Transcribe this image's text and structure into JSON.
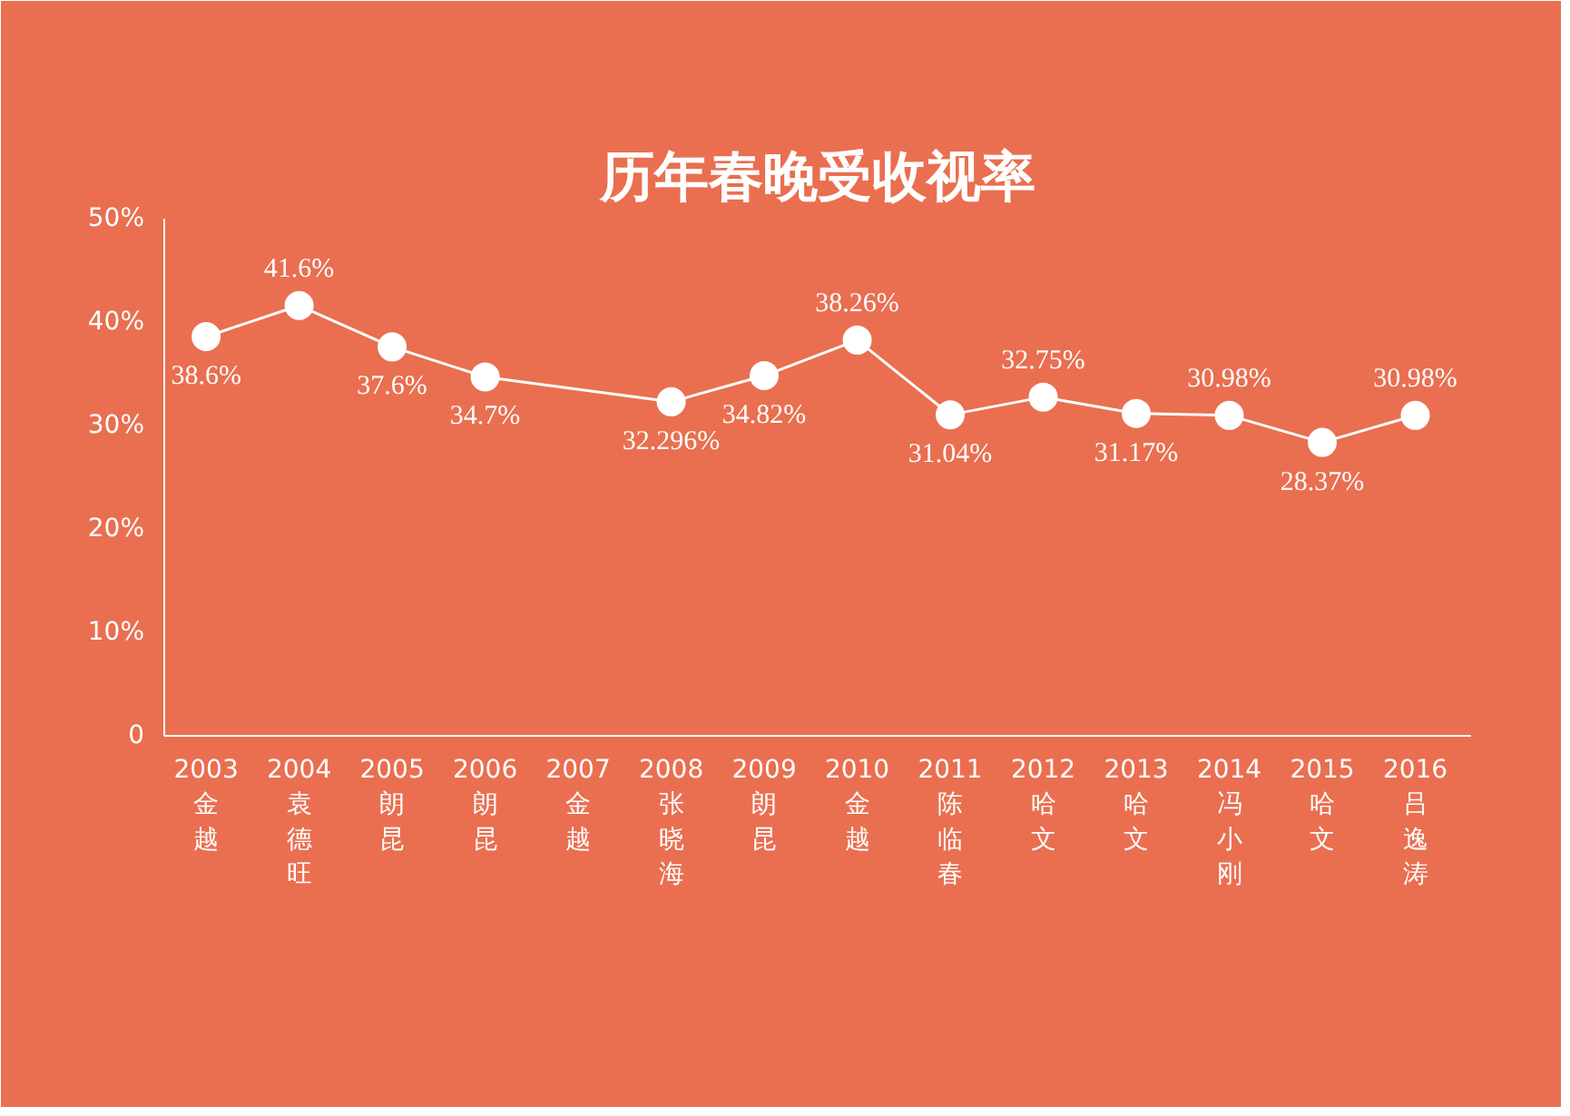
{
  "chart_data": {
    "type": "line",
    "title": "历年春晚受收视率",
    "categories": [
      "2003\n金越",
      "2004\n袁德旺",
      "2005\n朗昆",
      "2006\n朗昆",
      "2007\n金越",
      "2008\n张晓海",
      "2009\n朗昆",
      "2010\n金越",
      "2011\n陈临春",
      "2012\n哈文",
      "2013\n哈文",
      "2014\n冯小刚",
      "2015\n哈文",
      "2016\n吕逸涛"
    ],
    "series": [
      {
        "color": "#ffffff",
        "values": [
          38.6,
          41.6,
          37.6,
          34.7,
          null,
          32.296,
          34.82,
          38.26,
          31.04,
          32.75,
          31.17,
          30.98,
          28.37,
          30.98
        ]
      }
    ],
    "value_labels": [
      "38.6%",
      "41.6%",
      "37.6%",
      "34.7%",
      null,
      "32.296%",
      "34.82%",
      "38.26%",
      "31.04%",
      "32.75%",
      "31.17%",
      "30.98%",
      "28.37%",
      "30.98%"
    ],
    "ylim": [
      0,
      50
    ],
    "yticks": [
      0,
      {
        "value": 10,
        "label": "10%"
      },
      {
        "value": 20,
        "label": "20%"
      },
      {
        "value": 30,
        "label": "30%"
      },
      {
        "value": 40,
        "label": "40%"
      },
      {
        "value": 50,
        "label": "50%"
      }
    ],
    "grid": false,
    "marker": "circle",
    "line_style": "solid"
  }
}
